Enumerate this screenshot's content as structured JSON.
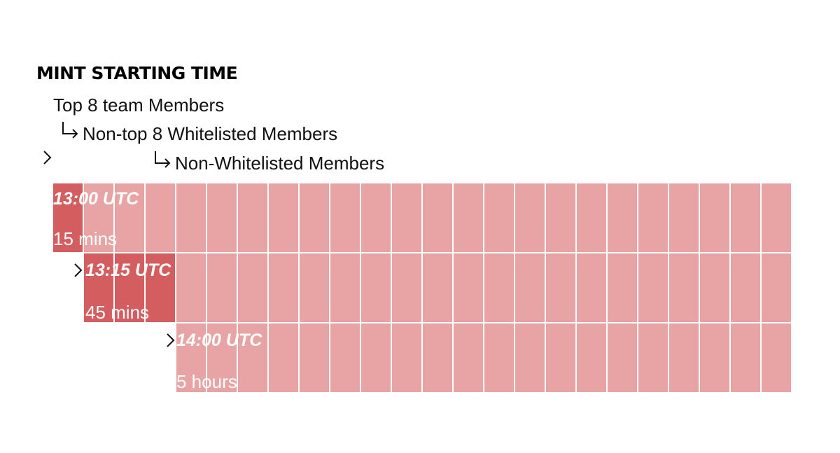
{
  "header": {
    "title": "MINT STARTING TIME"
  },
  "tiers": [
    {
      "label": "Top 8 team Members",
      "time": "13:00 UTC",
      "duration": "15 mins"
    },
    {
      "label": "Non-top 8 Whitelisted Members",
      "time": "13:15 UTC",
      "duration": "45 mins"
    },
    {
      "label": "Non-Whitelisted Members",
      "time": "14:00 UTC",
      "duration": "5 hours"
    }
  ]
}
